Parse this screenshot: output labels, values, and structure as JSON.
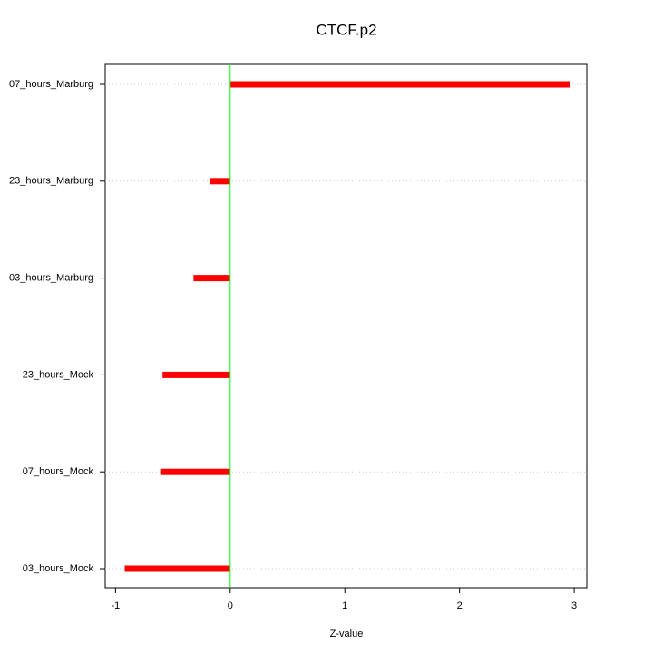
{
  "chart_data": {
    "type": "hbar",
    "title": "CTCF.p2",
    "x_label": "Z-value",
    "categories": [
      "07_hours_Marburg",
      "23_hours_Marburg",
      "03_hours_Marburg",
      "23_hours_Mock",
      "07_hours_Mock",
      "03_hours_Mock"
    ],
    "values": [
      2.96,
      -0.18,
      -0.32,
      -0.59,
      -0.61,
      -0.92
    ],
    "color": "#ff0000",
    "xlim": [
      -1.09,
      3.11
    ],
    "xticks": [
      -1,
      0,
      1,
      2,
      3
    ],
    "grid": true,
    "vline": 0,
    "vline_color": "#00ff00"
  }
}
